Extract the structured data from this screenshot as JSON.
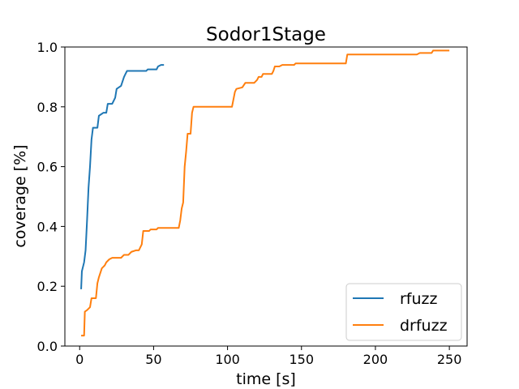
{
  "chart_data": {
    "type": "line",
    "title": "Sodor1Stage",
    "xlabel": "time [s]",
    "ylabel": "coverage [%]",
    "xlim": [
      -10,
      262
    ],
    "ylim": [
      0.0,
      1.0
    ],
    "xticks": [
      0,
      50,
      100,
      150,
      200,
      250
    ],
    "yticks": [
      0.0,
      0.2,
      0.4,
      0.6,
      0.8,
      1.0
    ],
    "xtick_labels": [
      "0",
      "50",
      "100",
      "150",
      "200",
      "250"
    ],
    "ytick_labels": [
      "0.0",
      "0.2",
      "0.4",
      "0.6",
      "0.8",
      "1.0"
    ],
    "grid": false,
    "legend_position": "lower-right",
    "series": [
      {
        "name": "rfuzz",
        "color": "#1f77b4",
        "points": [
          [
            1,
            0.19
          ],
          [
            1.5,
            0.25
          ],
          [
            3,
            0.28
          ],
          [
            4,
            0.32
          ],
          [
            5,
            0.42
          ],
          [
            6,
            0.53
          ],
          [
            7,
            0.6
          ],
          [
            8,
            0.69
          ],
          [
            9,
            0.73
          ],
          [
            12,
            0.73
          ],
          [
            13,
            0.77
          ],
          [
            16,
            0.78
          ],
          [
            18,
            0.78
          ],
          [
            19,
            0.81
          ],
          [
            22,
            0.81
          ],
          [
            24,
            0.83
          ],
          [
            25,
            0.86
          ],
          [
            28,
            0.87
          ],
          [
            30,
            0.9
          ],
          [
            31,
            0.91
          ],
          [
            32,
            0.92
          ],
          [
            45,
            0.92
          ],
          [
            46,
            0.925
          ],
          [
            52,
            0.925
          ],
          [
            53,
            0.935
          ],
          [
            55,
            0.94
          ],
          [
            57,
            0.94
          ]
        ]
      },
      {
        "name": "drfuzz",
        "color": "#ff7f0e",
        "points": [
          [
            1,
            0.035
          ],
          [
            3,
            0.035
          ],
          [
            3.5,
            0.115
          ],
          [
            5,
            0.12
          ],
          [
            7,
            0.13
          ],
          [
            8,
            0.16
          ],
          [
            11,
            0.16
          ],
          [
            12,
            0.21
          ],
          [
            13,
            0.23
          ],
          [
            15,
            0.26
          ],
          [
            17,
            0.27
          ],
          [
            18,
            0.28
          ],
          [
            20,
            0.29
          ],
          [
            22,
            0.295
          ],
          [
            28,
            0.295
          ],
          [
            30,
            0.305
          ],
          [
            33,
            0.305
          ],
          [
            35,
            0.315
          ],
          [
            38,
            0.32
          ],
          [
            40,
            0.32
          ],
          [
            42,
            0.34
          ],
          [
            43,
            0.385
          ],
          [
            47,
            0.385
          ],
          [
            48,
            0.39
          ],
          [
            52,
            0.39
          ],
          [
            53,
            0.395
          ],
          [
            67,
            0.395
          ],
          [
            68,
            0.42
          ],
          [
            69,
            0.46
          ],
          [
            70,
            0.48
          ],
          [
            71,
            0.6
          ],
          [
            72,
            0.65
          ],
          [
            73,
            0.71
          ],
          [
            75,
            0.71
          ],
          [
            76,
            0.78
          ],
          [
            77,
            0.8
          ],
          [
            103,
            0.8
          ],
          [
            105,
            0.85
          ],
          [
            106,
            0.86
          ],
          [
            110,
            0.865
          ],
          [
            112,
            0.88
          ],
          [
            118,
            0.88
          ],
          [
            120,
            0.89
          ],
          [
            121,
            0.9
          ],
          [
            123,
            0.9
          ],
          [
            124,
            0.91
          ],
          [
            130,
            0.91
          ],
          [
            131,
            0.92
          ],
          [
            132,
            0.935
          ],
          [
            135,
            0.935
          ],
          [
            137,
            0.94
          ],
          [
            145,
            0.94
          ],
          [
            146,
            0.945
          ],
          [
            180,
            0.945
          ],
          [
            181,
            0.975
          ],
          [
            228,
            0.975
          ],
          [
            230,
            0.98
          ],
          [
            238,
            0.98
          ],
          [
            239,
            0.988
          ],
          [
            250,
            0.988
          ]
        ]
      }
    ]
  }
}
